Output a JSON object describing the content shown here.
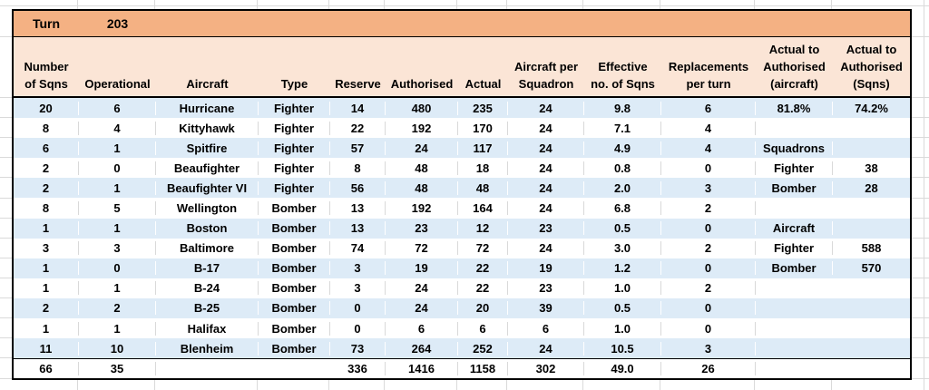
{
  "sheet": {
    "turn_label": "Turn",
    "turn_value": "203"
  },
  "table": {
    "columns": [
      {
        "label": "Number of Sqns",
        "lines": [
          "Number",
          "of Sqns"
        ]
      },
      {
        "label": "Operational",
        "lines": [
          "Operational"
        ]
      },
      {
        "label": "Aircraft",
        "lines": [
          "Aircraft"
        ]
      },
      {
        "label": "Type",
        "lines": [
          "Type"
        ]
      },
      {
        "label": "Reserve",
        "lines": [
          "Reserve"
        ]
      },
      {
        "label": "Authorised",
        "lines": [
          "Authorised"
        ]
      },
      {
        "label": "Actual",
        "lines": [
          "Actual"
        ]
      },
      {
        "label": "Aircraft per Squadron",
        "lines": [
          "Aircraft per",
          "Squadron"
        ]
      },
      {
        "label": "Effective no. of Sqns",
        "lines": [
          "Effective",
          "no. of Sqns"
        ]
      },
      {
        "label": "Replacements per turn",
        "lines": [
          "Replacements",
          "per turn"
        ]
      },
      {
        "label": "Actual to Authorised (aircraft)",
        "lines": [
          "Actual to",
          "Authorised",
          "(aircraft)"
        ]
      },
      {
        "label": "Actual to Authorised (Sqns)",
        "lines": [
          "Actual to",
          "Authorised",
          "(Sqns)"
        ]
      }
    ],
    "rows": [
      [
        "20",
        "6",
        "Hurricane",
        "Fighter",
        "14",
        "480",
        "235",
        "24",
        "9.8",
        "6",
        "81.8%",
        "74.2%"
      ],
      [
        "8",
        "4",
        "Kittyhawk",
        "Fighter",
        "22",
        "192",
        "170",
        "24",
        "7.1",
        "4",
        "",
        ""
      ],
      [
        "6",
        "1",
        "Spitfire",
        "Fighter",
        "57",
        "24",
        "117",
        "24",
        "4.9",
        "4",
        "Squadrons",
        ""
      ],
      [
        "2",
        "0",
        "Beaufighter",
        "Fighter",
        "8",
        "48",
        "18",
        "24",
        "0.8",
        "0",
        "Fighter",
        "38"
      ],
      [
        "2",
        "1",
        "Beaufighter VI",
        "Fighter",
        "56",
        "48",
        "48",
        "24",
        "2.0",
        "3",
        "Bomber",
        "28"
      ],
      [
        "8",
        "5",
        "Wellington",
        "Bomber",
        "13",
        "192",
        "164",
        "24",
        "6.8",
        "2",
        "",
        ""
      ],
      [
        "1",
        "1",
        "Boston",
        "Bomber",
        "13",
        "23",
        "12",
        "23",
        "0.5",
        "0",
        "Aircraft",
        ""
      ],
      [
        "3",
        "3",
        "Baltimore",
        "Bomber",
        "74",
        "72",
        "72",
        "24",
        "3.0",
        "2",
        "Fighter",
        "588"
      ],
      [
        "1",
        "0",
        "B-17",
        "Bomber",
        "3",
        "19",
        "22",
        "19",
        "1.2",
        "0",
        "Bomber",
        "570"
      ],
      [
        "1",
        "1",
        "B-24",
        "Bomber",
        "3",
        "24",
        "22",
        "23",
        "1.0",
        "2",
        "",
        ""
      ],
      [
        "2",
        "2",
        "B-25",
        "Bomber",
        "0",
        "24",
        "20",
        "39",
        "0.5",
        "0",
        "",
        ""
      ],
      [
        "1",
        "1",
        "Halifax",
        "Bomber",
        "0",
        "6",
        "6",
        "6",
        "1.0",
        "0",
        "",
        ""
      ],
      [
        "11",
        "10",
        "Blenheim",
        "Bomber",
        "73",
        "264",
        "252",
        "24",
        "10.5",
        "3",
        "",
        ""
      ]
    ],
    "totals": [
      "66",
      "35",
      "",
      "",
      "336",
      "1416",
      "1158",
      "302",
      "49.0",
      "26",
      "",
      ""
    ]
  },
  "colors": {
    "turn_bar": "#F4B183",
    "header_fill": "#FBE5D6",
    "band_blue": "#DDEBF7",
    "gridline": "#DADADA"
  }
}
